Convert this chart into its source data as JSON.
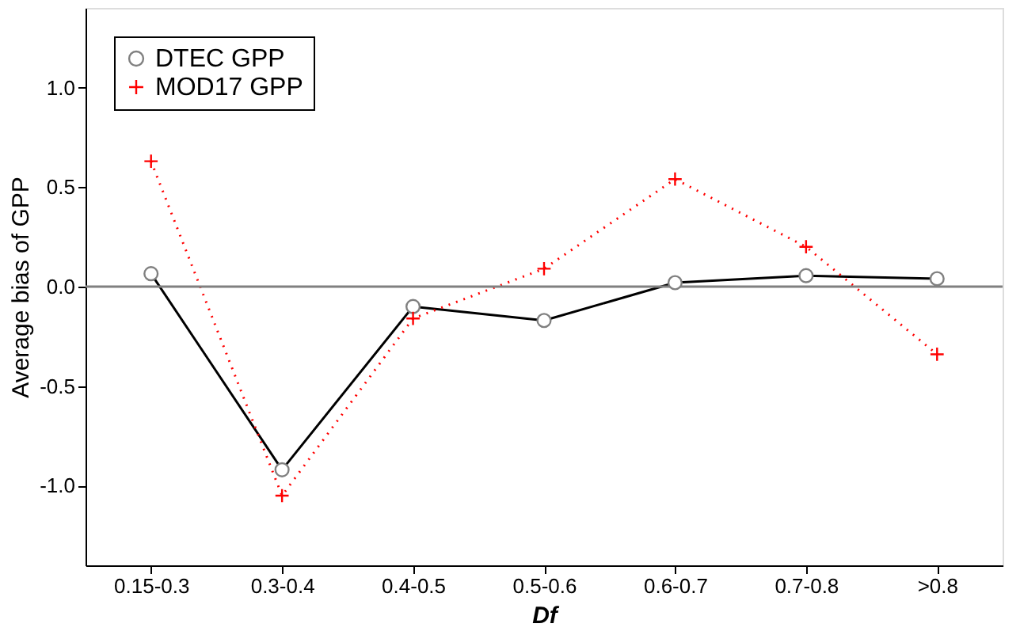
{
  "chart_data": {
    "type": "line",
    "xlabel": "Df",
    "ylabel": "Average bias of GPP",
    "categories": [
      "0.15-0.3",
      "0.3-0.4",
      "0.4-0.5",
      "0.5-0.6",
      "0.6-0.7",
      "0.7-0.8",
      ">0.8"
    ],
    "series": [
      {
        "name": "DTEC GPP",
        "color": "#000000",
        "marker": "circle",
        "line_style": "solid",
        "values": [
          0.065,
          -0.92,
          -0.1,
          -0.17,
          0.02,
          0.055,
          0.04
        ]
      },
      {
        "name": "MOD17 GPP",
        "color": "#ff0000",
        "marker": "cross",
        "line_style": "dotted",
        "values": [
          0.63,
          -1.05,
          -0.16,
          0.09,
          0.54,
          0.2,
          -0.34
        ]
      }
    ],
    "ylim": [
      -1.4,
      1.4
    ],
    "yticks": [
      {
        "value": -1,
        "label": "-1.0"
      },
      -0.5,
      {
        "value": 0,
        "label": "0.0"
      },
      0.5,
      {
        "value": 1,
        "label": "1.0"
      }
    ],
    "ref_lines": [
      {
        "axis": "y",
        "value": 0,
        "color": "#808080"
      }
    ],
    "grid": false,
    "legend": "top left"
  }
}
